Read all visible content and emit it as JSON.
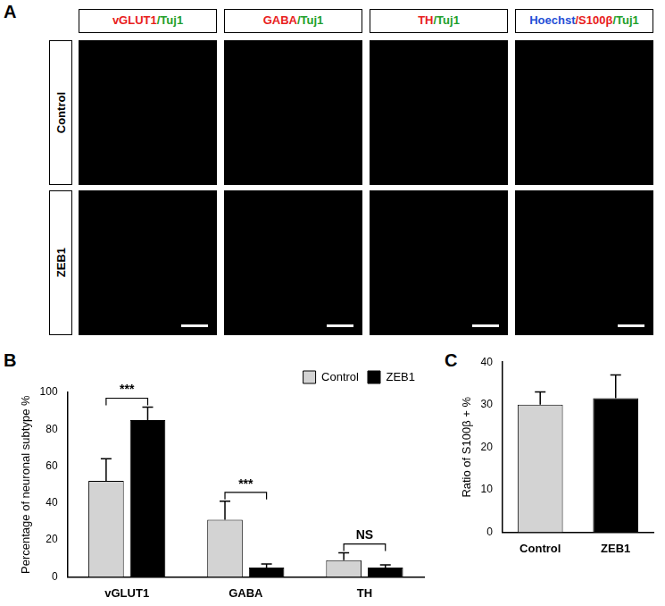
{
  "panel_labels": {
    "a": "A",
    "b": "B",
    "c": "C"
  },
  "image_grid": {
    "columns": [
      [
        {
          "text": "vGLUT1",
          "color": "#e8201c"
        },
        {
          "text": "/Tuj1",
          "color": "#22a02a"
        }
      ],
      [
        {
          "text": "GABA",
          "color": "#e8201c"
        },
        {
          "text": "/Tuj1",
          "color": "#22a02a"
        }
      ],
      [
        {
          "text": "TH",
          "color": "#e8201c"
        },
        {
          "text": "/Tuj1",
          "color": "#22a02a"
        }
      ],
      [
        {
          "text": "Hoechst",
          "color": "#1f4fd6"
        },
        {
          "text": "/S100β",
          "color": "#e8201c"
        },
        {
          "text": "/Tuj1",
          "color": "#22a02a"
        }
      ]
    ],
    "rows": [
      "Control",
      "ZEB1"
    ]
  },
  "chart_data": [
    {
      "type": "bar",
      "categories": [
        "vGLUT1",
        "GABA",
        "TH"
      ],
      "y_label": "Percentage of neuronal subtype %",
      "ylim": [
        0,
        100
      ],
      "yticks": [
        0,
        20,
        40,
        60,
        80,
        100
      ],
      "grid": false,
      "legend": "top-right",
      "series": [
        {
          "name": "Control",
          "color": "#d3d3d3",
          "values": [
            52,
            31,
            9
          ],
          "errors": [
            12,
            10,
            4
          ]
        },
        {
          "name": "ZEB1",
          "color": "#000000",
          "values": [
            85,
            5,
            5
          ],
          "errors": [
            7,
            2,
            1.5
          ]
        }
      ],
      "annotations": [
        {
          "text": "***",
          "category": "vGLUT1"
        },
        {
          "text": "***",
          "category": "GABA"
        },
        {
          "text": "NS",
          "category": "TH"
        }
      ]
    },
    {
      "type": "bar",
      "categories": [
        "Control",
        "ZEB1"
      ],
      "values": [
        30,
        31.5
      ],
      "errors": [
        3,
        5.5
      ],
      "colors": [
        "#d3d3d3",
        "#000000"
      ],
      "y_label": "Ratio of S100β + %",
      "ylim": [
        0,
        40
      ],
      "yticks": [
        0,
        10,
        20,
        30,
        40
      ],
      "grid": false
    }
  ]
}
